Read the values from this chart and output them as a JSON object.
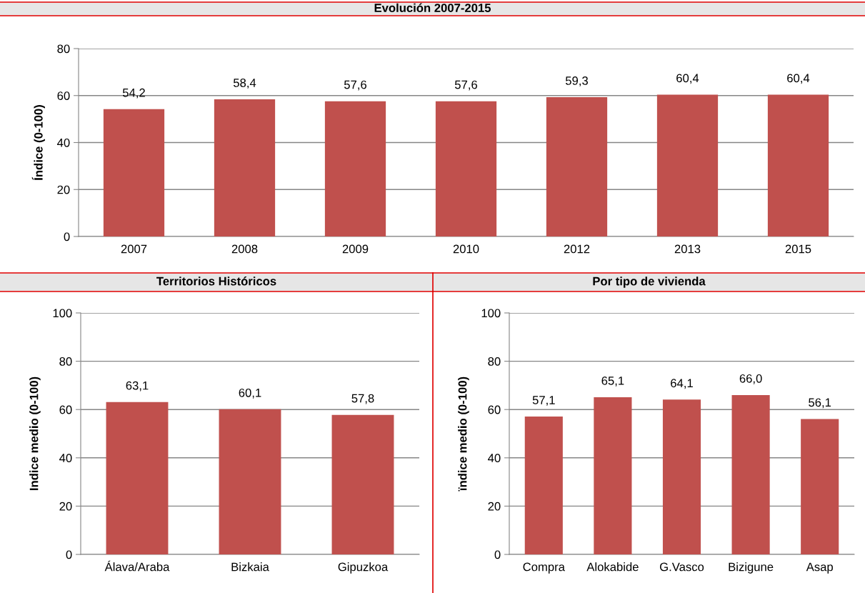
{
  "chart_data": [
    {
      "type": "bar",
      "title": "Evolución 2007-2015",
      "ylabel": "Índice (0-100)",
      "categories": [
        "2007",
        "2008",
        "2009",
        "2010",
        "2012",
        "2013",
        "2015"
      ],
      "values": [
        54.2,
        58.4,
        57.6,
        57.6,
        59.3,
        60.4,
        60.4
      ],
      "value_labels": [
        "54,2",
        "58,4",
        "57,6",
        "57,6",
        "59,3",
        "60,4",
        "60,4"
      ],
      "color": "#c0504d",
      "ylim": [
        0,
        80
      ],
      "yticks": [
        0,
        20,
        40,
        60,
        80
      ],
      "grid": "y"
    },
    {
      "type": "bar",
      "title": "Territorios Históricos",
      "ylabel": "Indice medio (0-100)",
      "categories": [
        "Álava/Araba",
        "Bizkaia",
        "Gipuzkoa"
      ],
      "values": [
        63.1,
        60.1,
        57.8
      ],
      "value_labels": [
        "63,1",
        "60,1",
        "57,8"
      ],
      "color": "#c0504d",
      "ylim": [
        0,
        100
      ],
      "yticks": [
        0,
        20,
        40,
        60,
        80,
        100
      ],
      "grid": "y"
    },
    {
      "type": "bar",
      "title": "Por tipo de vivienda",
      "ylabel": "ïndice medio (0-100)",
      "categories": [
        "Compra",
        "Alokabide",
        "G.Vasco",
        "Bizigune",
        "Asap"
      ],
      "values": [
        57.1,
        65.1,
        64.1,
        66.0,
        56.1
      ],
      "value_labels": [
        "57,1",
        "65,1",
        "64,1",
        "66,0",
        "56,1"
      ],
      "color": "#c0504d",
      "ylim": [
        0,
        100
      ],
      "yticks": [
        0,
        20,
        40,
        60,
        80,
        100
      ],
      "grid": "y"
    }
  ]
}
